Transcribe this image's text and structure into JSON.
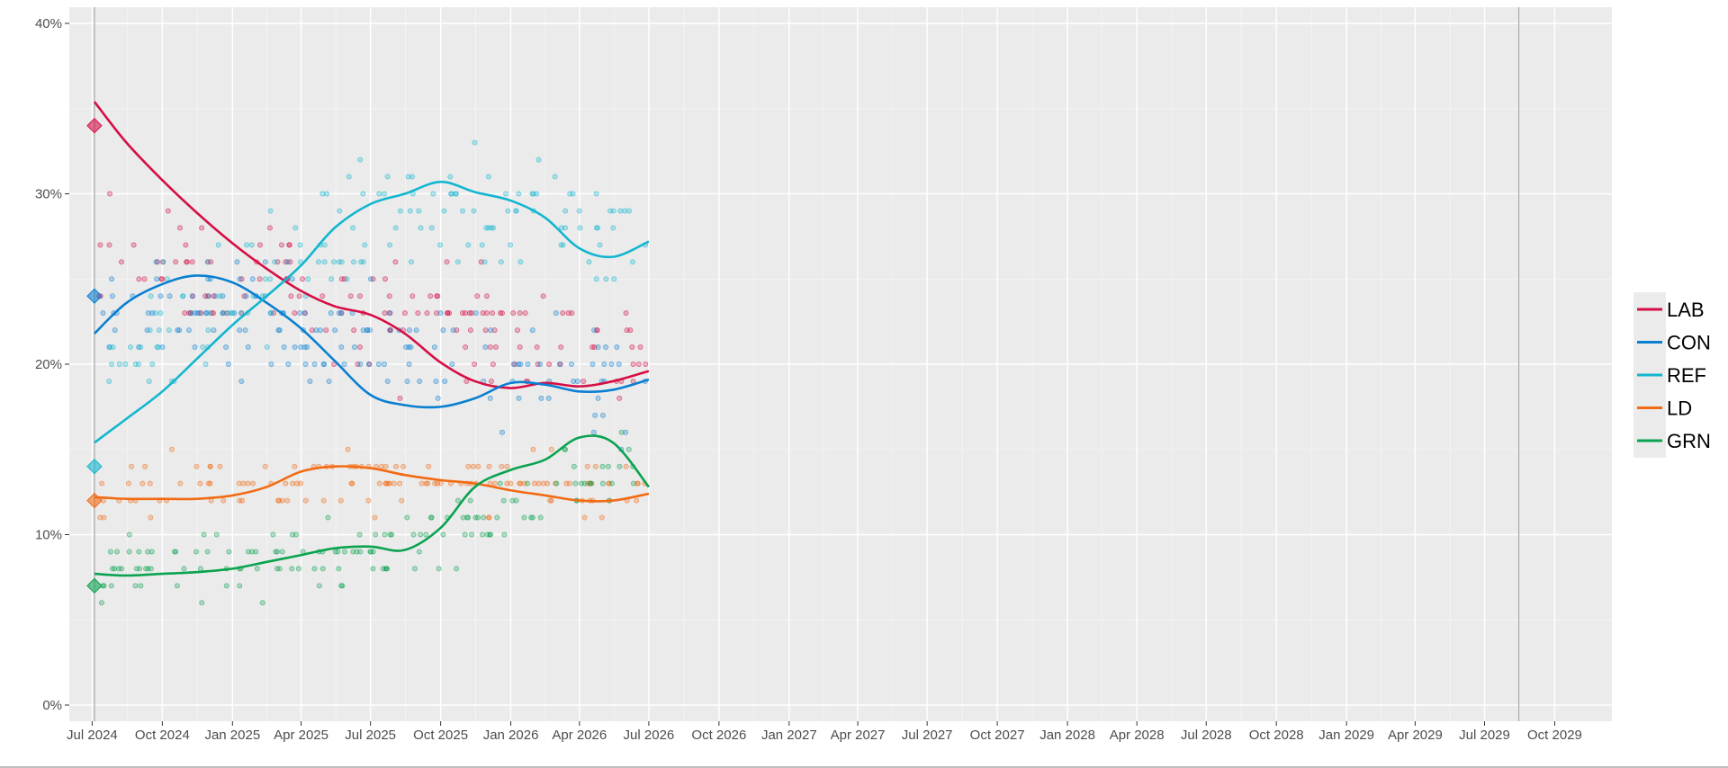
{
  "chart_data": {
    "type": "scatter",
    "title": "",
    "xlabel": "",
    "ylabel": "",
    "ylim": [
      0,
      40
    ],
    "xlim": [
      "2024-06-01",
      "2029-12-15"
    ],
    "y_ticks": [
      {
        "value": 0,
        "label": "0%"
      },
      {
        "value": 10,
        "label": "10%"
      },
      {
        "value": 20,
        "label": "20%"
      },
      {
        "value": 30,
        "label": "30%"
      },
      {
        "value": 40,
        "label": "40%"
      }
    ],
    "x_ticks": [
      {
        "date": "2024-07-01",
        "label": "Jul 2024"
      },
      {
        "date": "2024-10-01",
        "label": "Oct 2024"
      },
      {
        "date": "2025-01-01",
        "label": "Jan 2025"
      },
      {
        "date": "2025-04-01",
        "label": "Apr 2025"
      },
      {
        "date": "2025-07-01",
        "label": "Jul 2025"
      },
      {
        "date": "2025-10-01",
        "label": "Oct 2025"
      },
      {
        "date": "2026-01-01",
        "label": "Jan 2026"
      },
      {
        "date": "2026-04-01",
        "label": "Apr 2026"
      },
      {
        "date": "2026-07-01",
        "label": "Jul 2026"
      },
      {
        "date": "2026-10-01",
        "label": "Oct 2026"
      },
      {
        "date": "2027-01-01",
        "label": "Jan 2027"
      },
      {
        "date": "2027-04-01",
        "label": "Apr 2027"
      },
      {
        "date": "2027-07-01",
        "label": "Jul 2027"
      },
      {
        "date": "2027-10-01",
        "label": "Oct 2027"
      },
      {
        "date": "2028-01-01",
        "label": "Jan 2028"
      },
      {
        "date": "2028-04-01",
        "label": "Apr 2028"
      },
      {
        "date": "2028-07-01",
        "label": "Jul 2028"
      },
      {
        "date": "2028-10-01",
        "label": "Oct 2028"
      },
      {
        "date": "2029-01-01",
        "label": "Jan 2029"
      },
      {
        "date": "2029-04-01",
        "label": "Apr 2029"
      },
      {
        "date": "2029-07-01",
        "label": "Jul 2029"
      },
      {
        "date": "2029-10-01",
        "label": "Oct 2029"
      }
    ],
    "vertical_markers": [
      "2024-07-04",
      "2029-08-15"
    ],
    "grid": true,
    "legend_position": "right",
    "series": [
      {
        "name": "LAB",
        "color": "#d50f45",
        "election_result": {
          "date": "2024-07-04",
          "value": 34
        },
        "trend": [
          {
            "x": "2024-07-04",
            "y": 35.4
          },
          {
            "x": "2024-08-15",
            "y": 33.0
          },
          {
            "x": "2024-10-01",
            "y": 30.8
          },
          {
            "x": "2024-11-15",
            "y": 28.9
          },
          {
            "x": "2025-01-01",
            "y": 27.1
          },
          {
            "x": "2025-02-15",
            "y": 25.6
          },
          {
            "x": "2025-04-01",
            "y": 24.3
          },
          {
            "x": "2025-05-15",
            "y": 23.4
          },
          {
            "x": "2025-07-01",
            "y": 22.9
          },
          {
            "x": "2025-08-15",
            "y": 21.8
          },
          {
            "x": "2025-10-01",
            "y": 20.1
          },
          {
            "x": "2025-11-15",
            "y": 19.0
          },
          {
            "x": "2026-01-01",
            "y": 18.6
          },
          {
            "x": "2026-02-15",
            "y": 18.9
          },
          {
            "x": "2026-04-01",
            "y": 18.7
          },
          {
            "x": "2026-05-15",
            "y": 19.0
          },
          {
            "x": "2026-07-01",
            "y": 19.6
          }
        ],
        "polls": {
          "center": [
            26.0,
            23.5,
            20.5
          ],
          "spread": 3.0,
          "count": 150
        }
      },
      {
        "name": "CON",
        "color": "#0a7fd1",
        "election_result": {
          "date": "2024-07-04",
          "value": 24
        },
        "trend": [
          {
            "x": "2024-07-04",
            "y": 21.8
          },
          {
            "x": "2024-08-15",
            "y": 23.6
          },
          {
            "x": "2024-10-01",
            "y": 24.7
          },
          {
            "x": "2024-11-15",
            "y": 25.2
          },
          {
            "x": "2025-01-01",
            "y": 24.8
          },
          {
            "x": "2025-02-15",
            "y": 23.6
          },
          {
            "x": "2025-04-01",
            "y": 22.1
          },
          {
            "x": "2025-05-15",
            "y": 20.2
          },
          {
            "x": "2025-07-01",
            "y": 18.2
          },
          {
            "x": "2025-08-15",
            "y": 17.6
          },
          {
            "x": "2025-10-01",
            "y": 17.5
          },
          {
            "x": "2025-11-15",
            "y": 18.0
          },
          {
            "x": "2026-01-01",
            "y": 18.9
          },
          {
            "x": "2026-02-15",
            "y": 18.8
          },
          {
            "x": "2026-04-01",
            "y": 18.4
          },
          {
            "x": "2026-05-15",
            "y": 18.5
          },
          {
            "x": "2026-07-01",
            "y": 19.1
          }
        ],
        "polls": {
          "center": [
            24.0,
            21.0,
            18.5
          ],
          "spread": 2.5,
          "count": 150
        }
      },
      {
        "name": "REF",
        "color": "#12b6cf",
        "election_result": {
          "date": "2024-07-04",
          "value": 14
        },
        "trend": [
          {
            "x": "2024-07-04",
            "y": 15.4
          },
          {
            "x": "2024-08-15",
            "y": 16.8
          },
          {
            "x": "2024-10-01",
            "y": 18.4
          },
          {
            "x": "2024-11-15",
            "y": 20.3
          },
          {
            "x": "2025-01-01",
            "y": 22.3
          },
          {
            "x": "2025-02-15",
            "y": 24.0
          },
          {
            "x": "2025-04-01",
            "y": 25.8
          },
          {
            "x": "2025-05-15",
            "y": 28.0
          },
          {
            "x": "2025-07-01",
            "y": 29.4
          },
          {
            "x": "2025-08-15",
            "y": 30.0
          },
          {
            "x": "2025-10-01",
            "y": 30.7
          },
          {
            "x": "2025-11-15",
            "y": 30.1
          },
          {
            "x": "2026-01-01",
            "y": 29.6
          },
          {
            "x": "2026-02-15",
            "y": 28.6
          },
          {
            "x": "2026-04-01",
            "y": 26.8
          },
          {
            "x": "2026-05-15",
            "y": 26.3
          },
          {
            "x": "2026-07-01",
            "y": 27.2
          }
        ],
        "polls": {
          "center": [
            20.0,
            28.5,
            28.0
          ],
          "spread": 3.0,
          "count": 150
        }
      },
      {
        "name": "LD",
        "color": "#f26b14",
        "election_result": {
          "date": "2024-07-04",
          "value": 12
        },
        "trend": [
          {
            "x": "2024-07-04",
            "y": 12.2
          },
          {
            "x": "2024-08-15",
            "y": 12.1
          },
          {
            "x": "2024-10-01",
            "y": 12.1
          },
          {
            "x": "2024-11-15",
            "y": 12.1
          },
          {
            "x": "2025-01-01",
            "y": 12.3
          },
          {
            "x": "2025-02-15",
            "y": 12.8
          },
          {
            "x": "2025-04-01",
            "y": 13.7
          },
          {
            "x": "2025-05-15",
            "y": 14.0
          },
          {
            "x": "2025-07-01",
            "y": 13.9
          },
          {
            "x": "2025-08-15",
            "y": 13.5
          },
          {
            "x": "2025-10-01",
            "y": 13.2
          },
          {
            "x": "2025-11-15",
            "y": 13.0
          },
          {
            "x": "2026-01-01",
            "y": 12.6
          },
          {
            "x": "2026-02-15",
            "y": 12.3
          },
          {
            "x": "2026-04-01",
            "y": 12.0
          },
          {
            "x": "2026-05-15",
            "y": 12.0
          },
          {
            "x": "2026-07-01",
            "y": 12.4
          }
        ],
        "polls": {
          "center": [
            12.5,
            13.5,
            12.5
          ],
          "spread": 1.4,
          "count": 130
        }
      },
      {
        "name": "GRN",
        "color": "#0aa34f",
        "election_result": {
          "date": "2024-07-04",
          "value": 7
        },
        "trend": [
          {
            "x": "2024-07-04",
            "y": 7.7
          },
          {
            "x": "2024-08-15",
            "y": 7.6
          },
          {
            "x": "2024-10-01",
            "y": 7.7
          },
          {
            "x": "2024-11-15",
            "y": 7.8
          },
          {
            "x": "2025-01-01",
            "y": 8.0
          },
          {
            "x": "2025-02-15",
            "y": 8.4
          },
          {
            "x": "2025-04-01",
            "y": 8.8
          },
          {
            "x": "2025-05-15",
            "y": 9.2
          },
          {
            "x": "2025-07-01",
            "y": 9.3
          },
          {
            "x": "2025-08-15",
            "y": 9.1
          },
          {
            "x": "2025-10-01",
            "y": 10.4
          },
          {
            "x": "2025-11-15",
            "y": 12.8
          },
          {
            "x": "2026-01-01",
            "y": 13.8
          },
          {
            "x": "2026-02-15",
            "y": 14.4
          },
          {
            "x": "2026-04-01",
            "y": 15.7
          },
          {
            "x": "2026-05-15",
            "y": 15.4
          },
          {
            "x": "2026-07-01",
            "y": 12.8
          }
        ],
        "polls": {
          "center": [
            7.8,
            9.0,
            14.0
          ],
          "spread": 1.6,
          "count": 140
        }
      }
    ],
    "polls_window": [
      "2024-07-10",
      "2026-07-01"
    ]
  }
}
